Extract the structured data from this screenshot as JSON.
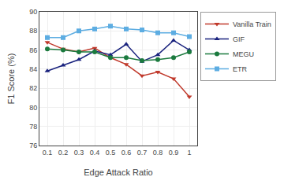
{
  "chart_data": {
    "type": "line",
    "x": [
      0.1,
      0.2,
      0.3,
      0.4,
      0.5,
      0.6,
      0.7,
      0.8,
      0.9,
      1.0
    ],
    "series": [
      {
        "name": "Vanilla Train",
        "color": "#c0392b",
        "marker": "triangle-down",
        "values": [
          86.8,
          86.1,
          85.8,
          86.2,
          85.2,
          84.5,
          83.3,
          83.7,
          83.0,
          81.1
        ]
      },
      {
        "name": "GIF",
        "color": "#1a237e",
        "marker": "triangle-up",
        "values": [
          83.8,
          84.4,
          85.0,
          85.9,
          85.5,
          86.6,
          84.8,
          85.5,
          87.0,
          86.0
        ]
      },
      {
        "name": "MEGU",
        "color": "#1b7a3e",
        "marker": "circle",
        "values": [
          86.1,
          86.0,
          85.8,
          85.8,
          85.2,
          85.2,
          84.9,
          85.0,
          85.2,
          85.8
        ]
      },
      {
        "name": "ETR",
        "color": "#5dade2",
        "marker": "square",
        "values": [
          87.3,
          87.3,
          88.0,
          88.2,
          88.5,
          88.2,
          88.1,
          87.8,
          87.8,
          87.4
        ]
      }
    ],
    "xlabel": "Edge Attack Ratio",
    "ylabel": "F1 Score (%)",
    "xlim": [
      0.05,
      1.05
    ],
    "xticks": [
      0.1,
      0.2,
      0.3,
      0.4,
      0.5,
      0.6,
      0.7,
      0.8,
      0.9,
      1
    ],
    "ylim": [
      76,
      90
    ],
    "yticks": [
      76,
      78,
      80,
      82,
      84,
      86,
      88,
      90
    ],
    "grid": true,
    "legend": "right"
  }
}
